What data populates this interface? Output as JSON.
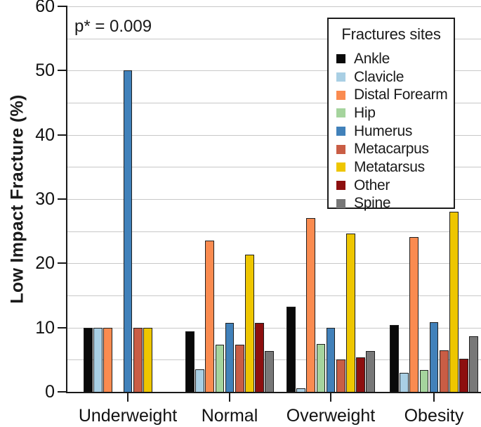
{
  "chart_data": {
    "type": "bar",
    "title": "",
    "xlabel": "",
    "ylabel": "Low Impact Fracture (%)",
    "ylim": [
      0,
      60
    ],
    "y_major_ticks": [
      0,
      10,
      20,
      30,
      40,
      50,
      60
    ],
    "grid_interval": 5,
    "grid": "on",
    "legend_title": "Fractures sites",
    "legend_position": "top-right",
    "annotations": [
      {
        "text": "p* = 0.009",
        "position": "top-left"
      }
    ],
    "categories": [
      "Underweight",
      "Normal",
      "Overweight",
      "Obesity"
    ],
    "series": [
      {
        "name": "Ankle",
        "color": "#0a0a0a",
        "values": [
          10.0,
          9.4,
          13.2,
          10.4
        ]
      },
      {
        "name": "Clavicle",
        "color": "#a9cfe4",
        "values": [
          10.0,
          3.5,
          0.6,
          3.0
        ]
      },
      {
        "name": "Distal Forearm",
        "color": "#fa8b50",
        "values": [
          10.0,
          23.5,
          27.1,
          24.1
        ]
      },
      {
        "name": "Hip",
        "color": "#a5d49d",
        "values": [
          0,
          7.3,
          7.5,
          3.4
        ]
      },
      {
        "name": "Humerus",
        "color": "#4181ba",
        "values": [
          50.0,
          10.7,
          10.0,
          10.8
        ]
      },
      {
        "name": "Metacarpus",
        "color": "#c95d45",
        "values": [
          10.0,
          7.3,
          5.0,
          6.5
        ]
      },
      {
        "name": "Metatarsus",
        "color": "#eec600",
        "values": [
          10.0,
          21.3,
          24.6,
          28.0
        ]
      },
      {
        "name": "Other",
        "color": "#8d0f0f",
        "values": [
          0,
          10.7,
          5.4,
          5.2
        ]
      },
      {
        "name": "Spine",
        "color": "#787878",
        "values": [
          0,
          6.4,
          6.4,
          8.6
        ]
      }
    ],
    "colors": {
      "axis": "#1a1a1a",
      "gridline": "#c8c8c8",
      "background": "#ffffff",
      "text": "#111111"
    }
  }
}
